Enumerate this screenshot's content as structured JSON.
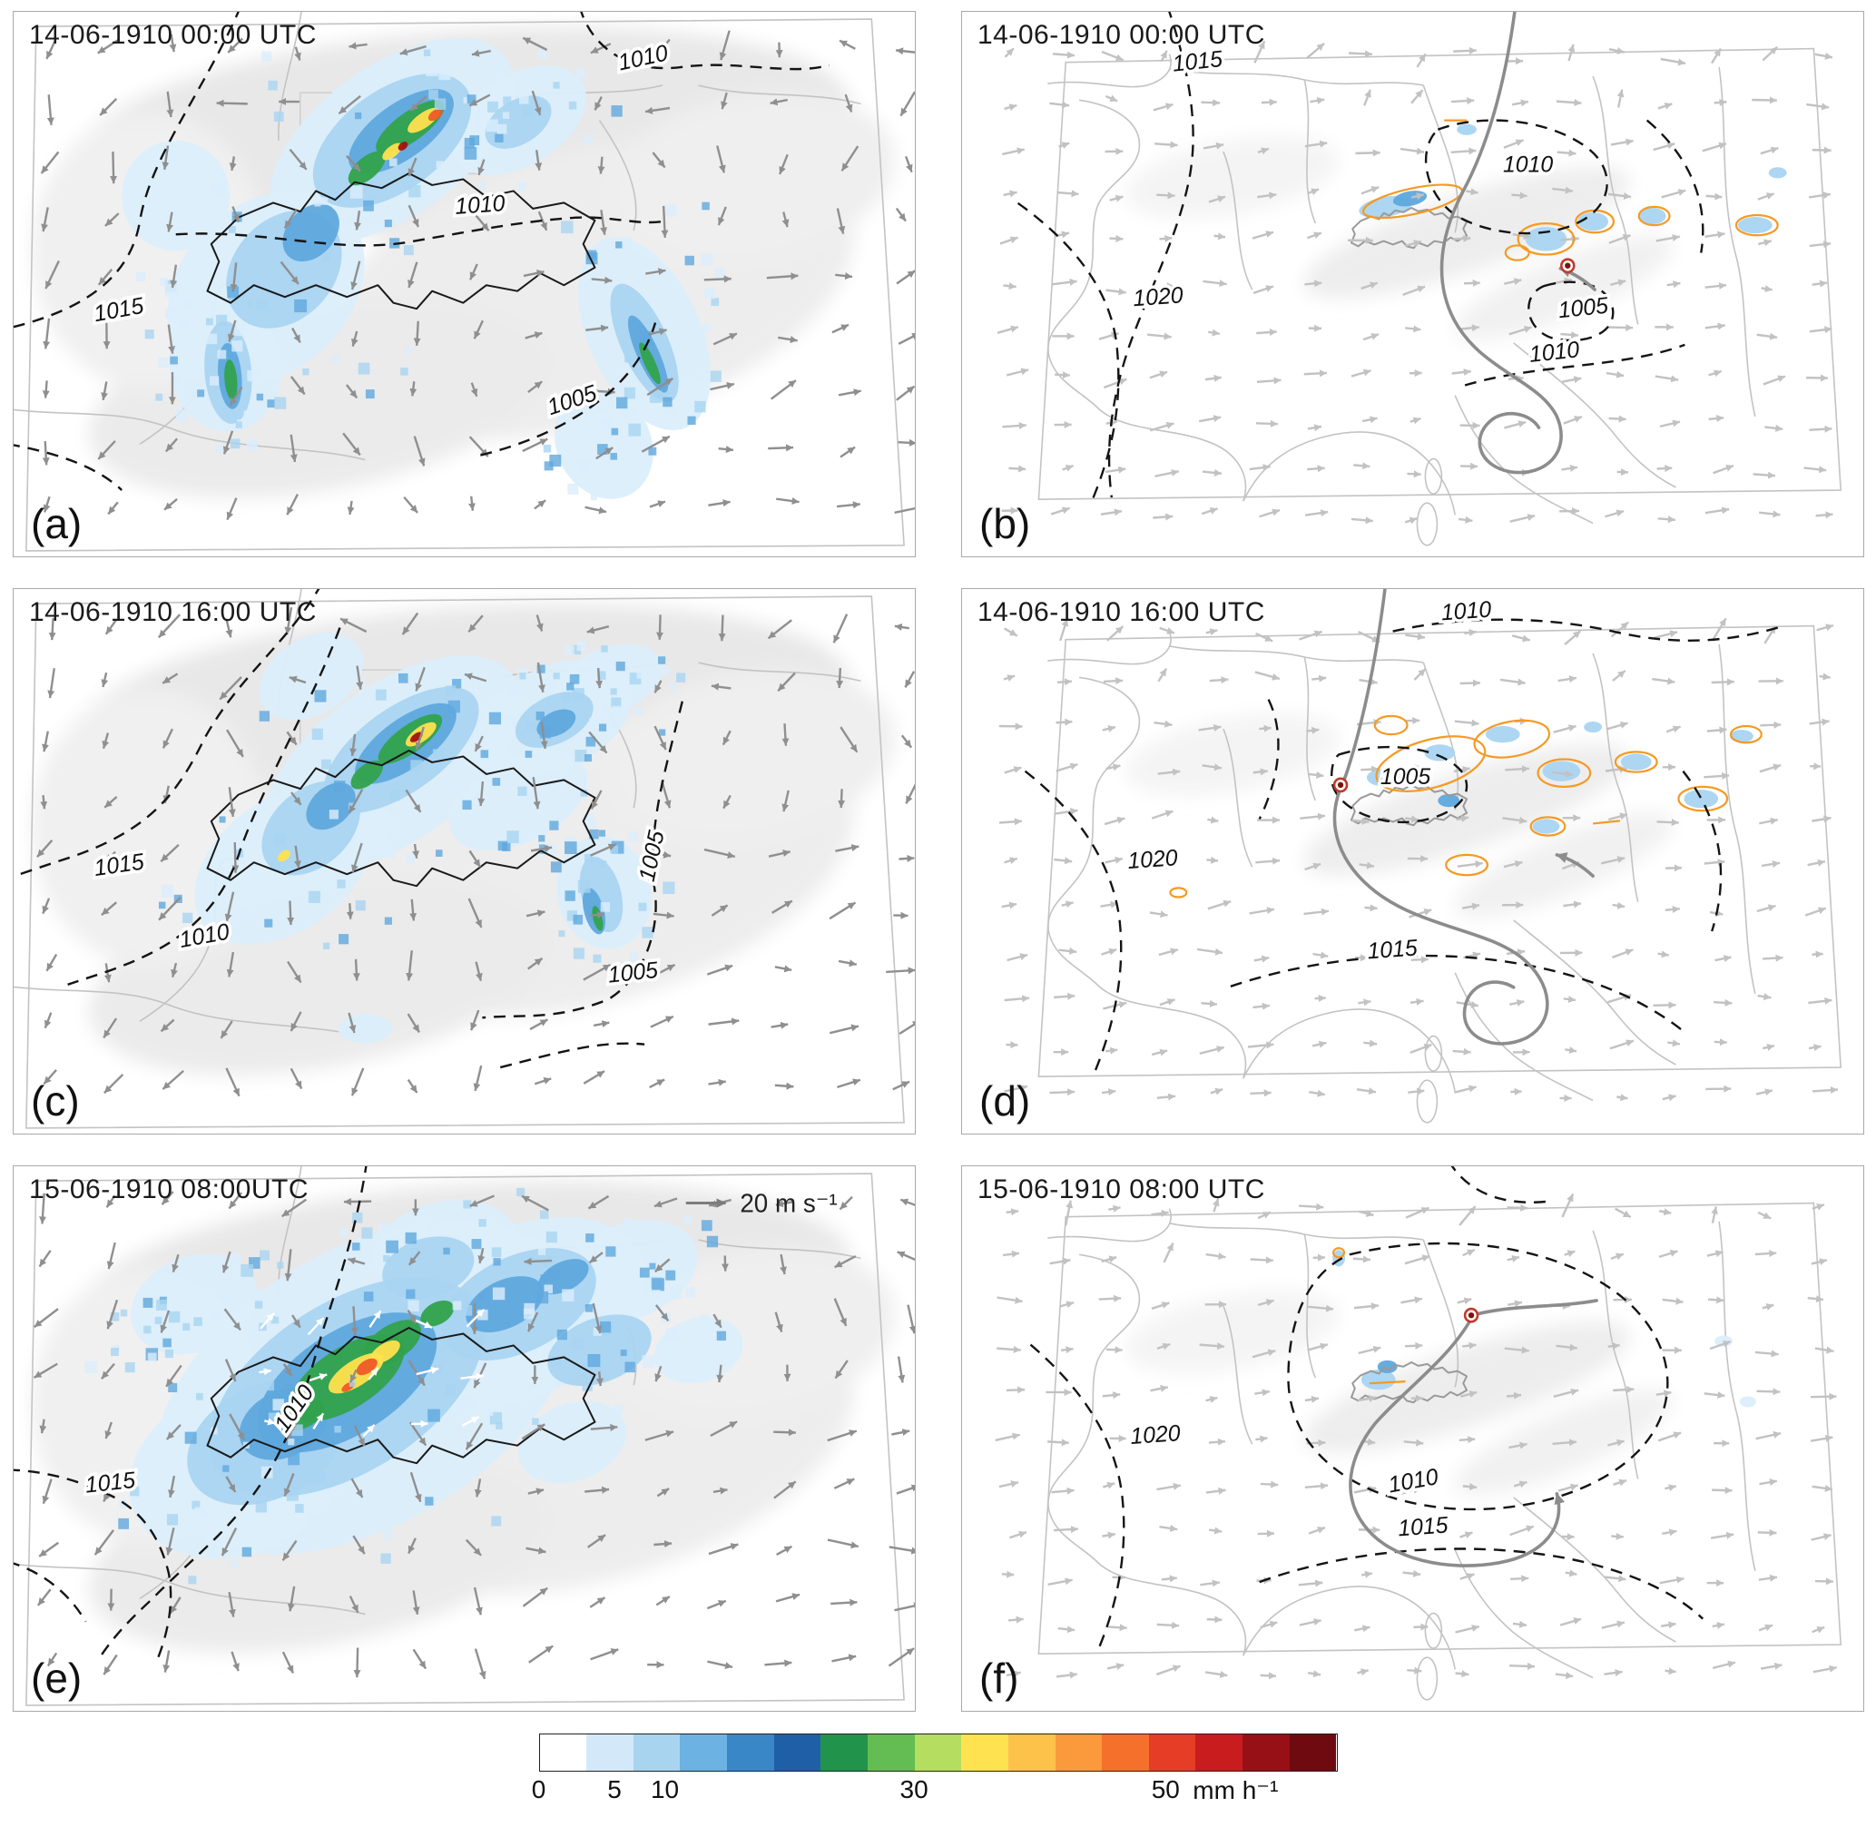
{
  "figure": {
    "panels": [
      {
        "id": "a",
        "label": "(a)",
        "timestamp": "14-06-1910 00:00 UTC",
        "pressure_labels": [
          "1015",
          "1010",
          "1010",
          "1005"
        ]
      },
      {
        "id": "b",
        "label": "(b)",
        "timestamp": "14-06-1910 00:00 UTC",
        "pressure_labels": [
          "1015",
          "1020",
          "1010",
          "1005",
          "1010"
        ]
      },
      {
        "id": "c",
        "label": "(c)",
        "timestamp": "14-06-1910 16:00 UTC",
        "pressure_labels": [
          "1015",
          "1010",
          "1005",
          "1005"
        ]
      },
      {
        "id": "d",
        "label": "(d)",
        "timestamp": "14-06-1910 16:00 UTC",
        "pressure_labels": [
          "1010",
          "1020",
          "1005",
          "1015"
        ]
      },
      {
        "id": "e",
        "label": "(e)",
        "timestamp": "15-06-1910 08:00UTC",
        "wind_reference": "20 m s⁻¹",
        "pressure_labels": [
          "1010",
          "1015"
        ]
      },
      {
        "id": "f",
        "label": "(f)",
        "timestamp": "15-06-1910 08:00 UTC",
        "pressure_labels": [
          "1020",
          "1010",
          "1015"
        ]
      }
    ],
    "colorbar": {
      "ticks": [
        "0",
        "5",
        "10",
        "30",
        "50"
      ],
      "unit": "mm h⁻¹",
      "colors": [
        "#ffffff",
        "#d3e9f9",
        "#a8d4f0",
        "#6cb2e2",
        "#3a87c8",
        "#1f5fa8",
        "#22934b",
        "#63bd52",
        "#b5dd60",
        "#ffe24f",
        "#fdc24a",
        "#fb9a3c",
        "#f4702b",
        "#e63e26",
        "#c91c1e",
        "#971015",
        "#6f0a10"
      ]
    },
    "style_colors": {
      "wind_arrow_gray": "#8f8f8f",
      "wind_arrow_light": "#c2c2c2",
      "pressure_contour": "#141414",
      "orange_contour": "#f59a23",
      "trajectory": "#8c8c8c",
      "cyclone_marker_red": "#c0392b"
    }
  }
}
